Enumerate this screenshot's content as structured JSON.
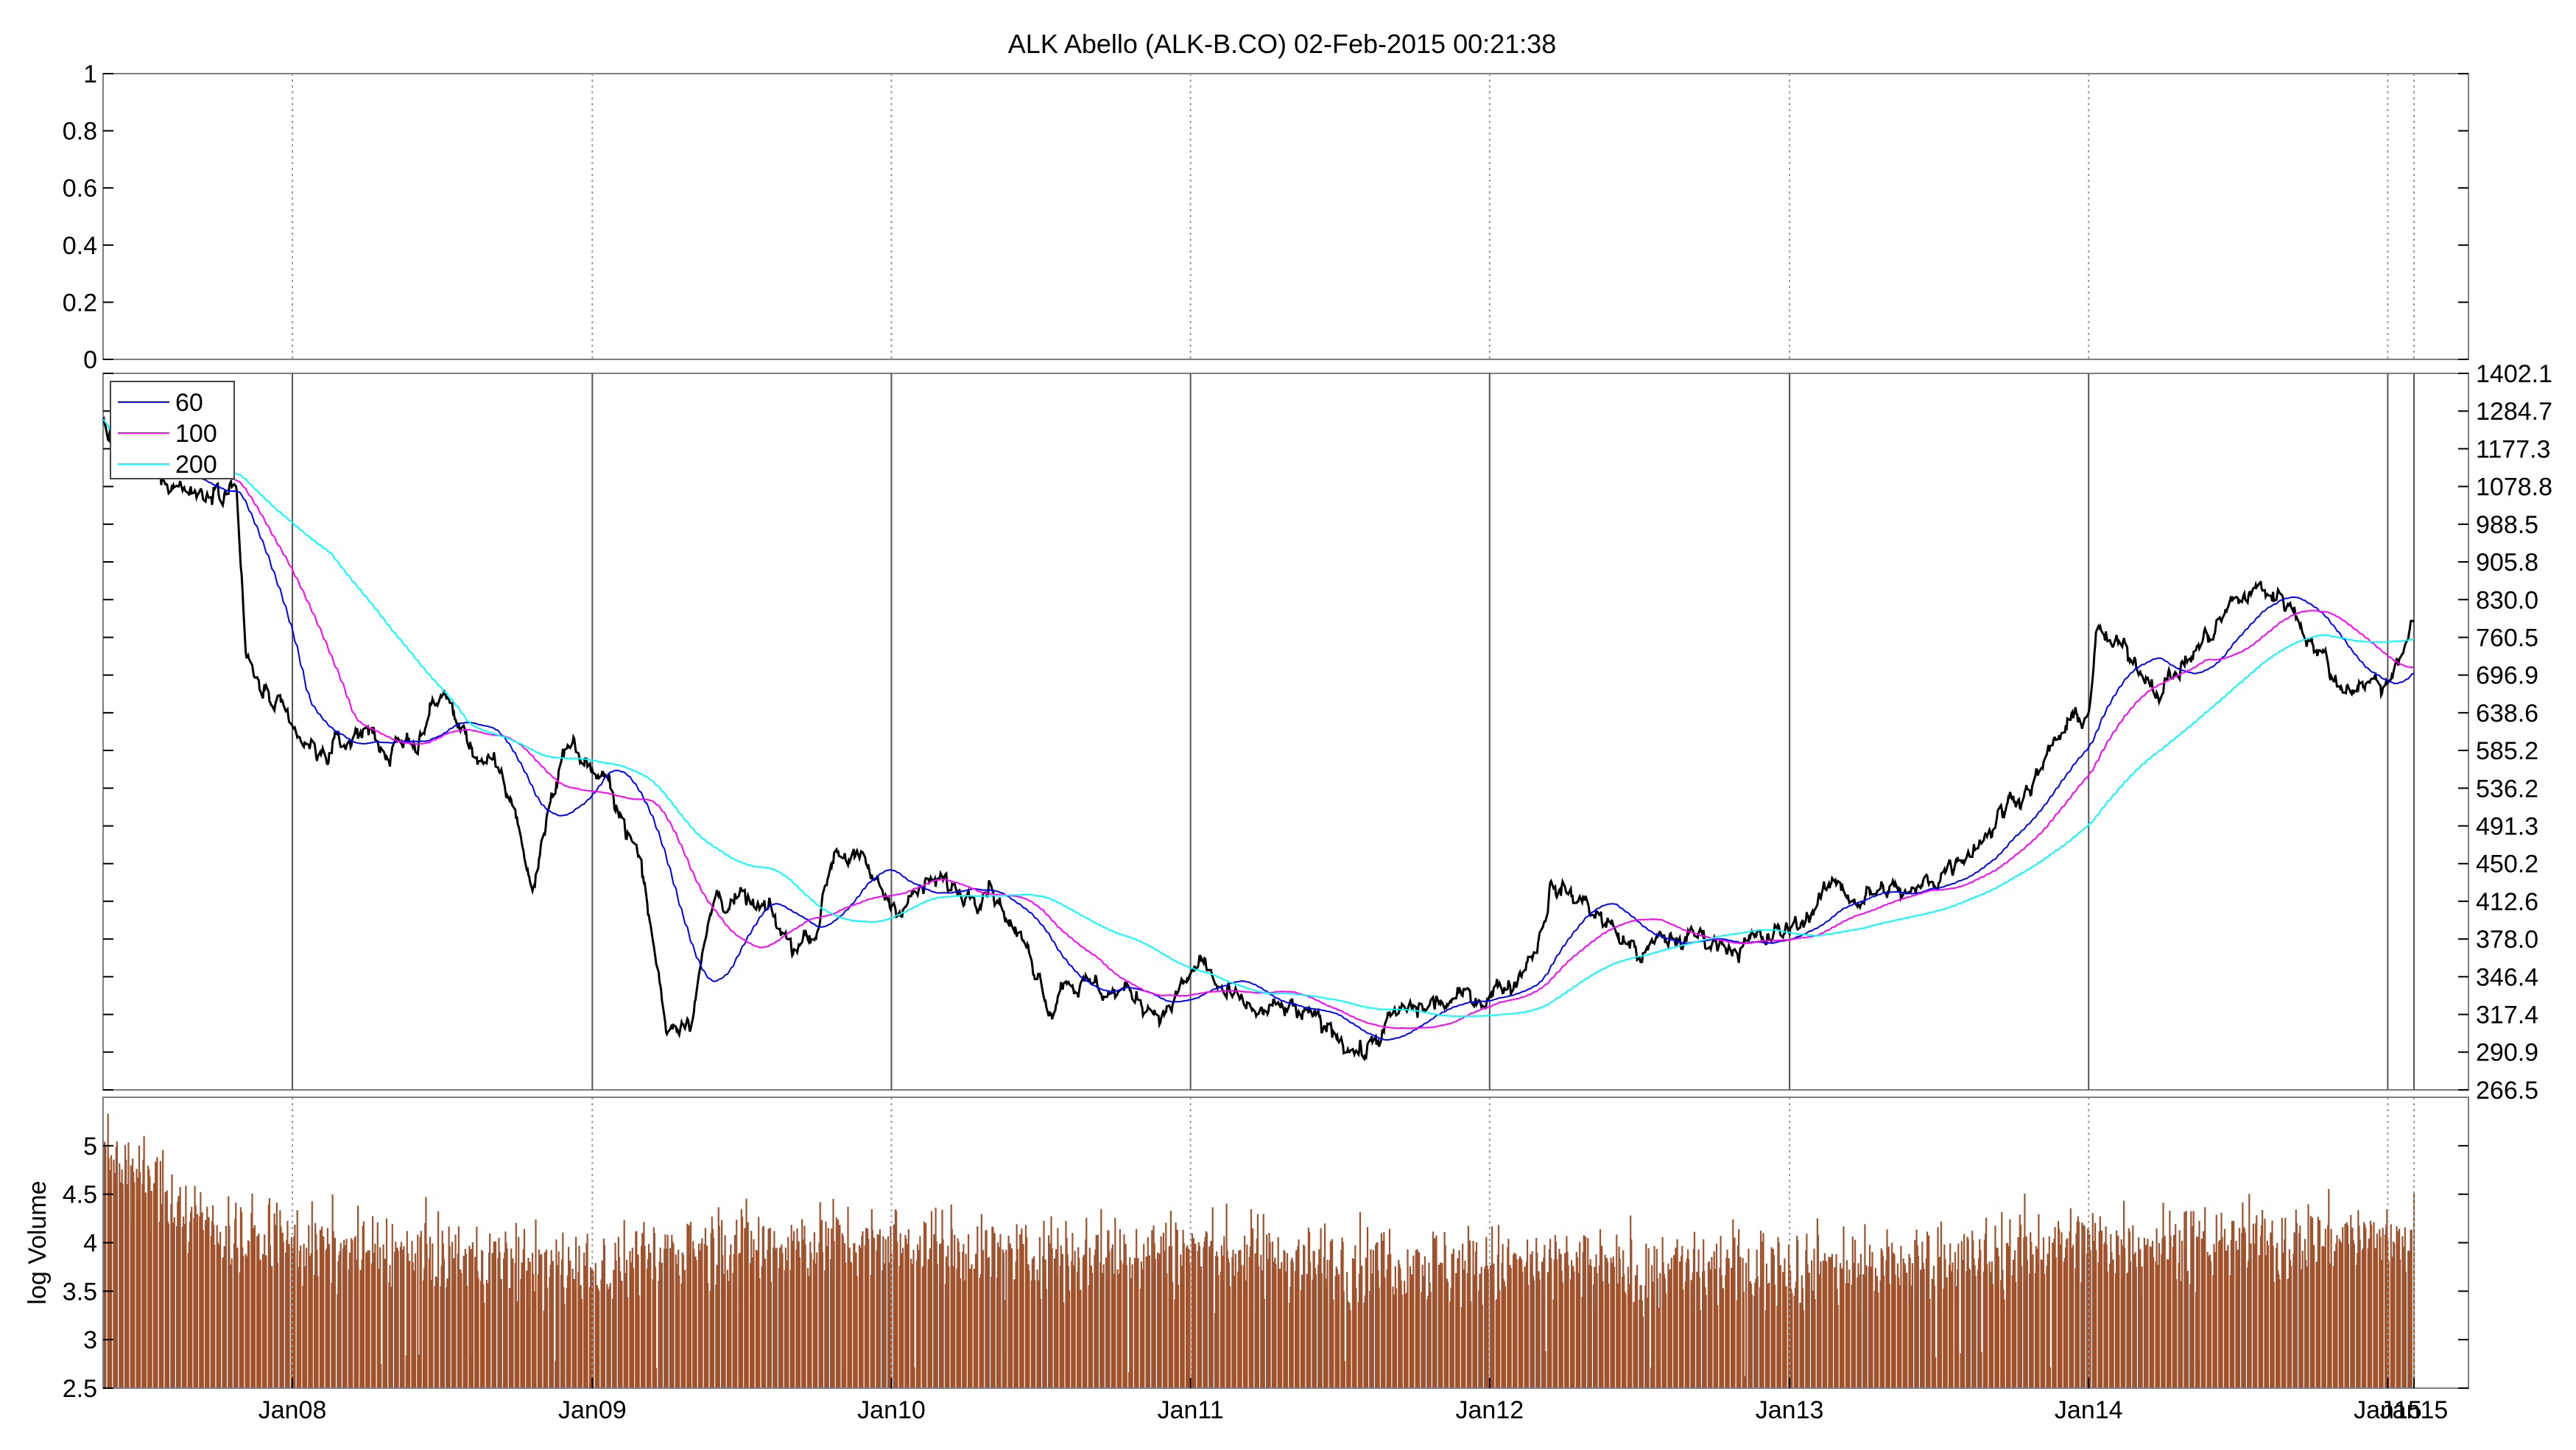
{
  "chart_data": [
    {
      "type": "line",
      "panel": "top",
      "title": "ALK Abello (ALK-B.CO) 02-Feb-2015 00:21:38",
      "yticks": [
        "0",
        "0.2",
        "0.4",
        "0.6",
        "0.8",
        "1"
      ],
      "ylim": [
        0,
        1
      ],
      "series": []
    },
    {
      "type": "line",
      "panel": "price",
      "yscale": "log",
      "ylim": [
        266.5,
        1402.1
      ],
      "yticks": [
        "266.5",
        "290.9",
        "317.4",
        "346.4",
        "378.0",
        "412.6",
        "450.2",
        "491.3",
        "536.2",
        "585.2",
        "638.6",
        "696.9",
        "760.5",
        "830.0",
        "905.8",
        "988.5",
        "1078.8",
        "1177.3",
        "1284.7",
        "1402.1"
      ],
      "x_domain": [
        "2007-05-15",
        "2015-02-02"
      ],
      "grid_dates": [
        "2008-01-01",
        "2009-01-01",
        "2010-01-01",
        "2011-01-01",
        "2012-01-01",
        "2013-01-01",
        "2014-01-01",
        "2015-01-01",
        "2015-02-02"
      ],
      "legend": {
        "position": "top-left",
        "entries": [
          "60",
          "100",
          "200"
        ]
      },
      "price_anchors": [
        [
          "2007-05-15",
          1250
        ],
        [
          "2007-06-10",
          1140
        ],
        [
          "2007-08-01",
          1110
        ],
        [
          "2007-09-10",
          1060
        ],
        [
          "2007-10-01",
          1100
        ],
        [
          "2007-10-25",
          1090
        ],
        [
          "2007-11-05",
          720
        ],
        [
          "2007-12-01",
          660
        ],
        [
          "2008-01-01",
          600
        ],
        [
          "2008-02-01",
          575
        ],
        [
          "2008-03-01",
          590
        ],
        [
          "2008-04-01",
          620
        ],
        [
          "2008-05-01",
          580
        ],
        [
          "2008-06-01",
          600
        ],
        [
          "2008-07-01",
          670
        ],
        [
          "2008-08-01",
          600
        ],
        [
          "2008-09-01",
          560
        ],
        [
          "2008-10-01",
          505
        ],
        [
          "2008-10-20",
          420
        ],
        [
          "2008-11-10",
          520
        ],
        [
          "2008-12-01",
          600
        ],
        [
          "2009-01-01",
          560
        ],
        [
          "2009-02-01",
          520
        ],
        [
          "2009-03-01",
          450
        ],
        [
          "2009-04-01",
          310
        ],
        [
          "2009-05-01",
          320
        ],
        [
          "2009-06-01",
          420
        ],
        [
          "2009-07-01",
          410
        ],
        [
          "2009-08-01",
          400
        ],
        [
          "2009-09-01",
          370
        ],
        [
          "2009-10-01",
          390
        ],
        [
          "2009-10-25",
          470
        ],
        [
          "2009-11-15",
          460
        ],
        [
          "2009-12-10",
          430
        ],
        [
          "2010-01-01",
          410
        ],
        [
          "2010-02-01",
          420
        ],
        [
          "2010-03-01",
          430
        ],
        [
          "2010-04-01",
          420
        ],
        [
          "2010-05-01",
          440
        ],
        [
          "2010-06-01",
          385
        ],
        [
          "2010-07-01",
          350
        ],
        [
          "2010-07-15",
          325
        ],
        [
          "2010-08-01",
          350
        ],
        [
          "2010-09-01",
          338
        ],
        [
          "2010-10-01",
          335
        ],
        [
          "2010-11-01",
          330
        ],
        [
          "2010-12-01",
          320
        ],
        [
          "2011-01-01",
          345
        ],
        [
          "2011-01-15",
          360
        ],
        [
          "2011-02-01",
          340
        ],
        [
          "2011-03-01",
          320
        ],
        [
          "2011-04-01",
          318
        ],
        [
          "2011-05-01",
          320
        ],
        [
          "2011-06-01",
          310
        ],
        [
          "2011-07-01",
          305
        ],
        [
          "2011-08-01",
          290
        ],
        [
          "2011-09-01",
          312
        ],
        [
          "2011-10-01",
          320
        ],
        [
          "2011-11-01",
          325
        ],
        [
          "2011-12-01",
          328
        ],
        [
          "2012-01-01",
          335
        ],
        [
          "2012-02-01",
          345
        ],
        [
          "2012-03-01",
          380
        ],
        [
          "2012-03-15",
          430
        ],
        [
          "2012-04-01",
          420
        ],
        [
          "2012-05-01",
          410
        ],
        [
          "2012-06-01",
          385
        ],
        [
          "2012-07-01",
          365
        ],
        [
          "2012-08-01",
          375
        ],
        [
          "2012-09-01",
          380
        ],
        [
          "2012-10-01",
          378
        ],
        [
          "2012-11-01",
          375
        ],
        [
          "2012-12-01",
          375
        ],
        [
          "2013-01-01",
          385
        ],
        [
          "2013-02-01",
          410
        ],
        [
          "2013-03-01",
          430
        ],
        [
          "2013-04-01",
          415
        ],
        [
          "2013-05-01",
          425
        ],
        [
          "2013-06-01",
          415
        ],
        [
          "2013-07-01",
          440
        ],
        [
          "2013-08-01",
          465
        ],
        [
          "2013-09-01",
          490
        ],
        [
          "2013-10-01",
          525
        ],
        [
          "2013-11-01",
          555
        ],
        [
          "2013-12-01",
          610
        ],
        [
          "2014-01-01",
          640
        ],
        [
          "2014-01-10",
          770
        ],
        [
          "2014-02-01",
          740
        ],
        [
          "2014-03-01",
          720
        ],
        [
          "2014-04-01",
          680
        ],
        [
          "2014-05-01",
          720
        ],
        [
          "2014-06-01",
          770
        ],
        [
          "2014-07-01",
          830
        ],
        [
          "2014-08-01",
          850
        ],
        [
          "2014-09-01",
          830
        ],
        [
          "2014-10-01",
          760
        ],
        [
          "2014-11-01",
          680
        ],
        [
          "2014-12-01",
          690
        ],
        [
          "2015-01-01",
          680
        ],
        [
          "2015-01-15",
          740
        ],
        [
          "2015-02-02",
          790
        ]
      ],
      "series": [
        {
          "name": "",
          "color": "#000000",
          "source": "price"
        },
        {
          "name": "60",
          "color": "#0000ff",
          "window": 60
        },
        {
          "name": "100",
          "color": "#ff00ff",
          "window": 100
        },
        {
          "name": "200",
          "color": "#00ffff",
          "window": 200
        }
      ]
    },
    {
      "type": "bar",
      "panel": "volume",
      "ylabel": "log Volume",
      "ylim": [
        2.5,
        5.5
      ],
      "yticks": [
        "2.5",
        "3",
        "3.5",
        "4",
        "4.5",
        "5"
      ],
      "color": "#a0522d",
      "volume_anchors": [
        [
          "2007-05-15",
          4.9
        ],
        [
          "2007-10-01",
          4.1
        ],
        [
          "2008-01-01",
          3.95
        ],
        [
          "2008-06-01",
          3.85
        ],
        [
          "2009-01-01",
          3.7
        ],
        [
          "2009-06-01",
          3.95
        ],
        [
          "2010-01-01",
          4.0
        ],
        [
          "2010-06-01",
          3.85
        ],
        [
          "2011-01-01",
          3.9
        ],
        [
          "2011-06-01",
          3.8
        ],
        [
          "2012-01-01",
          3.75
        ],
        [
          "2012-06-01",
          3.7
        ],
        [
          "2013-01-01",
          3.75
        ],
        [
          "2013-06-01",
          3.75
        ],
        [
          "2014-01-01",
          4.0
        ],
        [
          "2014-06-01",
          3.95
        ],
        [
          "2015-02-02",
          4.05
        ]
      ]
    }
  ],
  "x_axis": {
    "tick_labels": [
      "Jan08",
      "Jan09",
      "Jan10",
      "Jan11",
      "Jan12",
      "Jan13",
      "Jan14",
      "Jan15",
      "Jan15"
    ]
  }
}
